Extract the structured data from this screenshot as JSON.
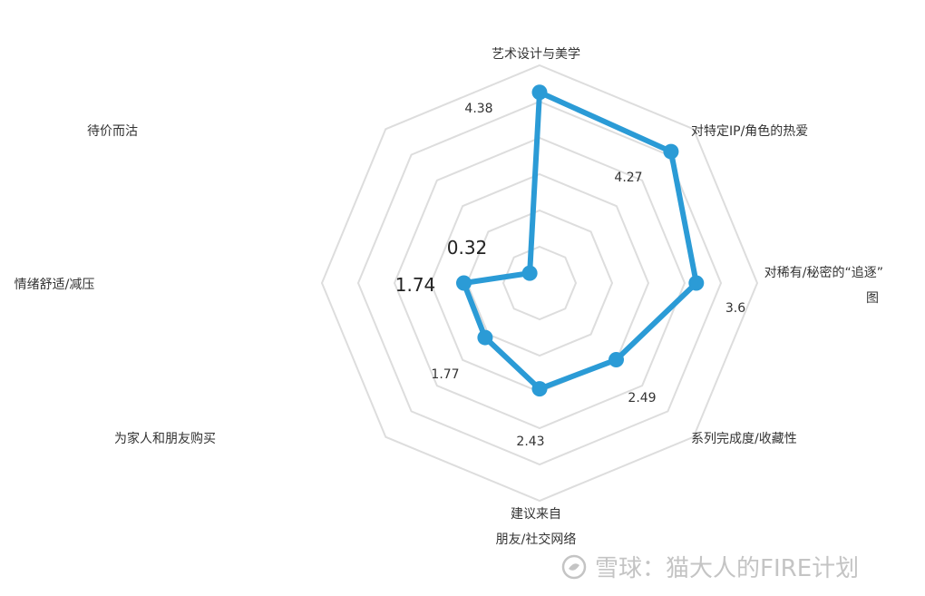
{
  "chart_data": {
    "type": "radar",
    "axes": [
      "艺术设计与美学",
      "对特定IP/角色的热爱",
      "对稀有/秘密的“追逐”图",
      "系列完成度/收藏性",
      "建议来自朋友/社交网络",
      "为家人和朋友购买",
      "情绪舒适/减压",
      "待价而沽"
    ],
    "axis_label_lines": [
      [
        "艺术设计与美学"
      ],
      [
        "对特定IP/角色的热爱"
      ],
      [
        "对稀有/秘密的“追逐”",
        "图"
      ],
      [
        "系列完成度/收藏性"
      ],
      [
        "建议来自",
        "朋友/社交网络"
      ],
      [
        "为家人和朋友购买"
      ],
      [
        "情绪舒适/减压"
      ],
      [
        "待价而沽"
      ]
    ],
    "values": [
      4.38,
      4.27,
      3.6,
      2.49,
      2.43,
      1.77,
      1.74,
      0.32
    ],
    "value_labels": [
      "4.38",
      "4.27",
      "3.6",
      "2.49",
      "2.43",
      "1.77",
      "1.74",
      "0.32"
    ],
    "range": [
      0,
      5
    ],
    "rings": 6,
    "series_color": "#2b9bd6",
    "grid_color": "#dddddd",
    "legend": "none"
  },
  "watermark": {
    "text": "雪球：猫大人的FIRE计划",
    "icon": "snowball-logo-icon"
  }
}
